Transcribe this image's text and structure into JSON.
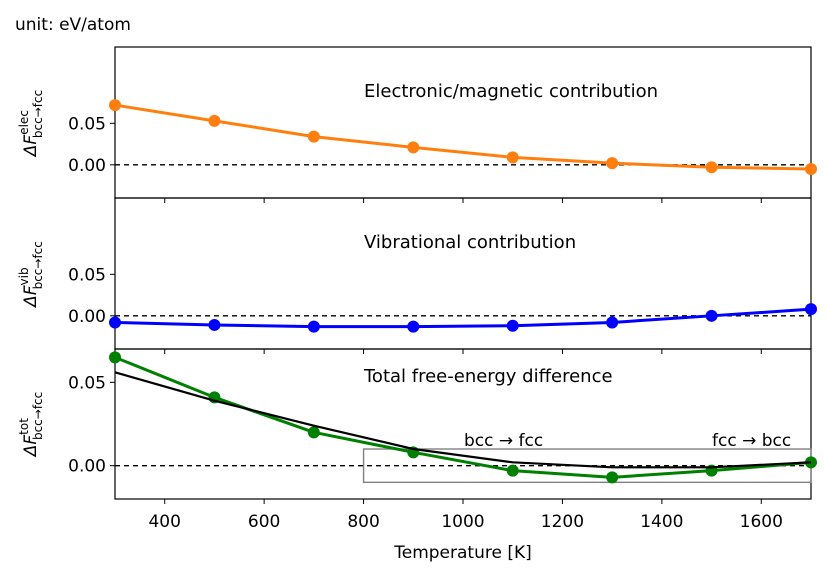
{
  "unit_label": "unit: eV/atom",
  "chart_data": {
    "type": "line",
    "xlabel": "Temperature [K]",
    "xlim": [
      300,
      1700
    ],
    "x_ticks": [
      400,
      600,
      800,
      1000,
      1200,
      1400,
      1600
    ],
    "x_tick_labels": [
      "400",
      "600",
      "800",
      "1000",
      "1200",
      "1400",
      "1600"
    ],
    "panels": [
      {
        "id": "elec",
        "annotation": "Electronic/magnetic contribution",
        "ylabel_base": "ΔF",
        "ylabel_sup": "elec",
        "ylabel_sub": "bcc→fcc",
        "ylim": [
          -0.04,
          0.142
        ],
        "y_ticks": [
          0.0,
          0.05
        ],
        "y_tick_labels": [
          "0.00",
          "0.05"
        ],
        "series": [
          {
            "color": "#ff7f0e",
            "x": [
              300,
              500,
              700,
              900,
              1100,
              1300,
              1500,
              1700
            ],
            "values": [
              0.072,
              0.053,
              0.034,
              0.021,
              0.009,
              0.002,
              -0.003,
              -0.005
            ]
          }
        ]
      },
      {
        "id": "vib",
        "annotation": "Vibrational contribution",
        "ylabel_base": "ΔF",
        "ylabel_sup": "vib",
        "ylabel_sub": "bcc→fcc",
        "ylim": [
          -0.04,
          0.142
        ],
        "y_ticks": [
          0.0,
          0.05
        ],
        "y_tick_labels": [
          "0.00",
          "0.05"
        ],
        "series": [
          {
            "color": "#0000ff",
            "x": [
              300,
              500,
              700,
              900,
              1100,
              1300,
              1500,
              1700
            ],
            "values": [
              -0.008,
              -0.011,
              -0.013,
              -0.013,
              -0.012,
              -0.008,
              0.0,
              0.008
            ]
          }
        ]
      },
      {
        "id": "tot",
        "annotation": "Total free-energy difference",
        "ylabel_base": "ΔF",
        "ylabel_sup": "tot",
        "ylabel_sub": "bcc→fcc",
        "ylim": [
          -0.02,
          0.07
        ],
        "y_ticks": [
          0.0,
          0.05
        ],
        "y_tick_labels": [
          "0.00",
          "0.05"
        ],
        "series": [
          {
            "color": "#008000",
            "x": [
              300,
              500,
              700,
              900,
              1100,
              1300,
              1500,
              1700
            ],
            "values": [
              0.065,
              0.041,
              0.02,
              0.008,
              -0.003,
              -0.007,
              -0.003,
              0.002
            ]
          },
          {
            "color": "#000000",
            "markers": false,
            "x": [
              300,
              500,
              700,
              900,
              1100,
              1300,
              1500,
              1700
            ],
            "values": [
              0.056,
              0.039,
              0.024,
              0.01,
              0.002,
              -0.001,
              -0.001,
              0.002
            ]
          }
        ],
        "inset_box": {
          "x": [
            800,
            1700
          ],
          "y": [
            -0.01,
            0.01
          ]
        },
        "transitions": [
          "bcc → fcc",
          "fcc → bcc"
        ]
      }
    ],
    "zero_line": {
      "y": 0,
      "style": "dashed"
    }
  }
}
